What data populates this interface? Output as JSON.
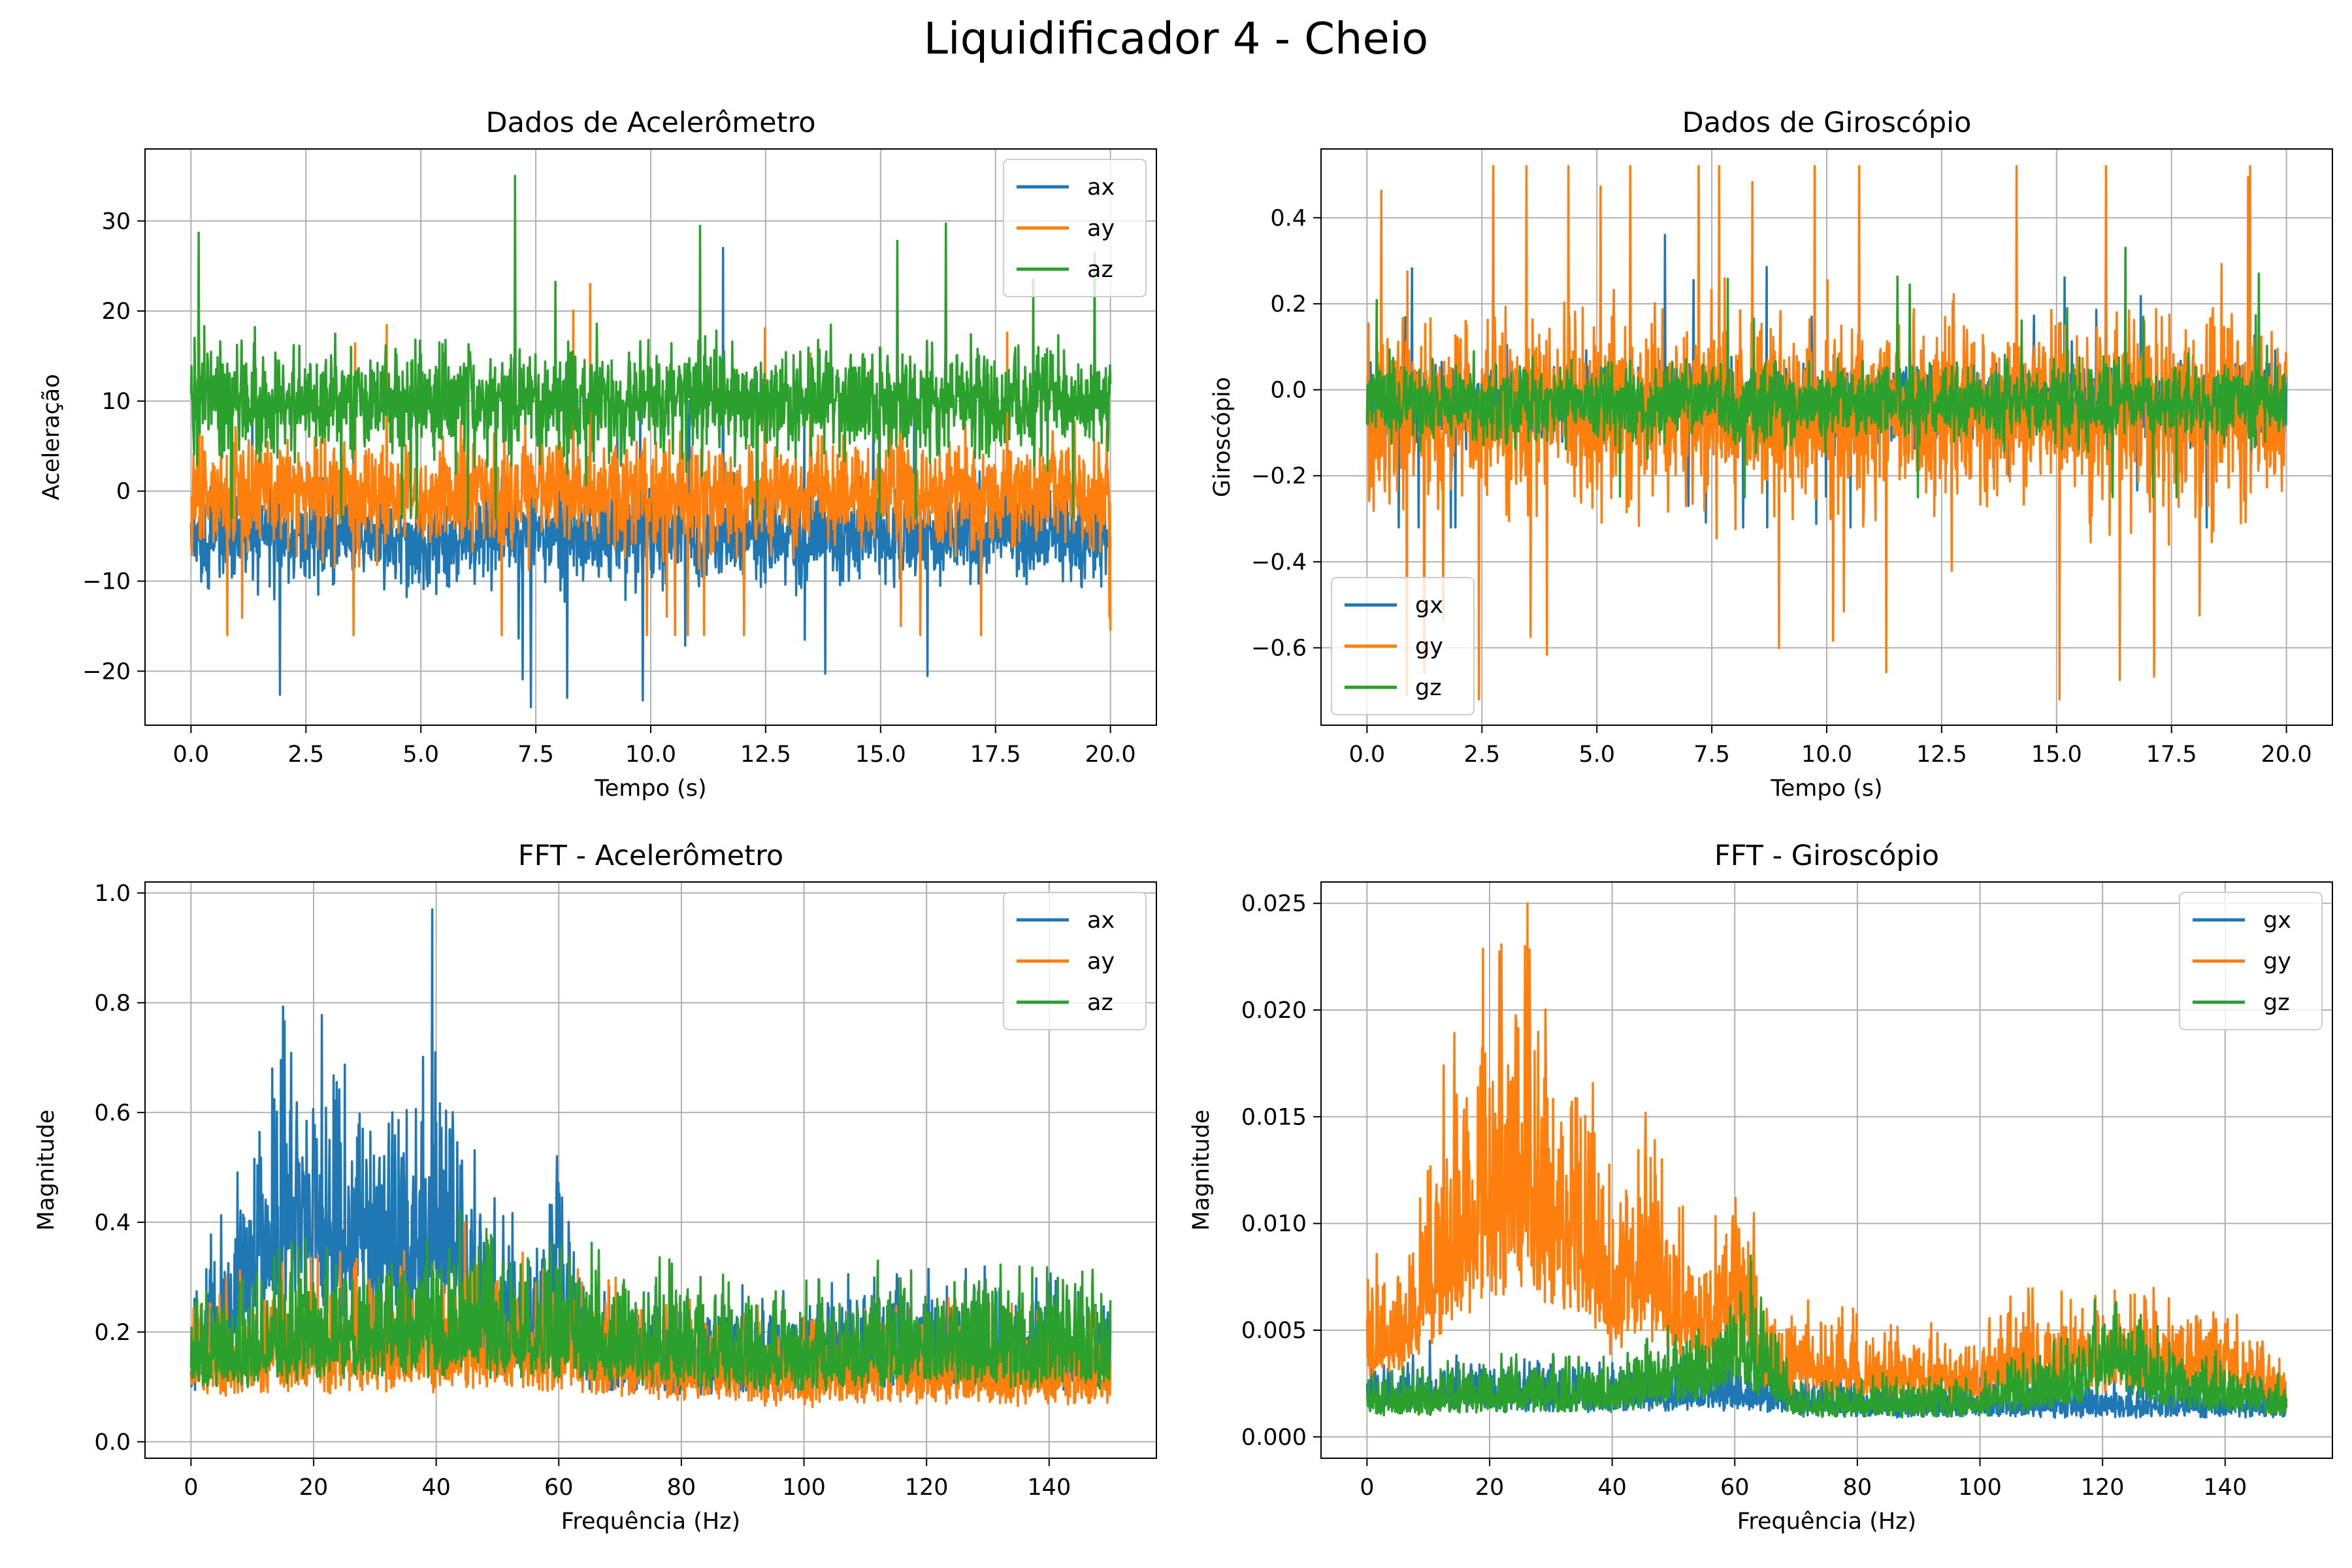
{
  "figure": {
    "suptitle": "Liquidificador 4 - Cheio"
  },
  "colors": {
    "blue": "#1f77b4",
    "orange": "#ff7f0e",
    "green": "#2ca02c",
    "grid": "#b0b0b0"
  },
  "chart_data": [
    {
      "id": "acc_time",
      "type": "line",
      "title": "Dados de Acelerômetro",
      "xlabel": "Tempo (s)",
      "ylabel": "Aceleração",
      "xlim": [
        -1.0,
        21.0
      ],
      "ylim": [
        -26.0,
        38.0
      ],
      "xticks": [
        0.0,
        2.5,
        5.0,
        7.5,
        10.0,
        12.5,
        15.0,
        17.5,
        20.0
      ],
      "xtick_labels": [
        "0.0",
        "2.5",
        "5.0",
        "7.5",
        "10.0",
        "12.5",
        "15.0",
        "17.5",
        "20.0"
      ],
      "yticks": [
        -20,
        -10,
        0,
        10,
        20,
        30
      ],
      "ytick_labels": [
        "−20",
        "−10",
        "0",
        "10",
        "20",
        "30"
      ],
      "grid": true,
      "legend": "top-right",
      "series_summary": [
        {
          "name": "ax",
          "color": "#1f77b4",
          "x_range": [
            0,
            20
          ],
          "center": -5.0,
          "typical_band": [
            -13,
            3
          ],
          "min": -24,
          "max": 27
        },
        {
          "name": "ay",
          "color": "#ff7f0e",
          "x_range": [
            0,
            20
          ],
          "center": 0.0,
          "typical_band": [
            -8,
            10
          ],
          "min": -16,
          "max": 23
        },
        {
          "name": "az",
          "color": "#2ca02c",
          "x_range": [
            0,
            20
          ],
          "center": 10.0,
          "typical_band": [
            2,
            20
          ],
          "min": -3,
          "max": 35
        }
      ]
    },
    {
      "id": "gyro_time",
      "type": "line",
      "title": "Dados de Giroscópio",
      "xlabel": "Tempo (s)",
      "ylabel": "Giroscópio",
      "xlim": [
        -1.0,
        21.0
      ],
      "ylim": [
        -0.78,
        0.56
      ],
      "xticks": [
        0.0,
        2.5,
        5.0,
        7.5,
        10.0,
        12.5,
        15.0,
        17.5,
        20.0
      ],
      "xtick_labels": [
        "0.0",
        "2.5",
        "5.0",
        "7.5",
        "10.0",
        "12.5",
        "15.0",
        "17.5",
        "20.0"
      ],
      "yticks": [
        -0.6,
        -0.4,
        -0.2,
        0.0,
        0.2,
        0.4
      ],
      "ytick_labels": [
        "−0.6",
        "−0.4",
        "−0.2",
        "0.0",
        "0.2",
        "0.4"
      ],
      "grid": true,
      "legend": "bottom-left",
      "series_summary": [
        {
          "name": "gx",
          "color": "#1f77b4",
          "x_range": [
            0,
            20
          ],
          "center": -0.03,
          "typical_band": [
            -0.16,
            0.12
          ],
          "min": -0.32,
          "max": 0.36
        },
        {
          "name": "gy",
          "color": "#ff7f0e",
          "x_range": [
            0,
            20
          ],
          "center": -0.05,
          "typical_band": [
            -0.38,
            0.28
          ],
          "min": -0.72,
          "max": 0.52
        },
        {
          "name": "gz",
          "color": "#2ca02c",
          "x_range": [
            0,
            20
          ],
          "center": -0.03,
          "typical_band": [
            -0.15,
            0.12
          ],
          "min": -0.25,
          "max": 0.33
        }
      ]
    },
    {
      "id": "acc_fft",
      "type": "line",
      "title": "FFT - Acelerômetro",
      "xlabel": "Frequência (Hz)",
      "ylabel": "Magnitude",
      "xlim": [
        -7.5,
        157.5
      ],
      "ylim": [
        -0.03,
        1.02
      ],
      "xticks": [
        0,
        20,
        40,
        60,
        80,
        100,
        120,
        140
      ],
      "xtick_labels": [
        "0",
        "20",
        "40",
        "60",
        "80",
        "100",
        "120",
        "140"
      ],
      "yticks": [
        0.0,
        0.2,
        0.4,
        0.6,
        0.8,
        1.0
      ],
      "ytick_labels": [
        "0.0",
        "0.2",
        "0.4",
        "0.6",
        "0.8",
        "1.0"
      ],
      "grid": true,
      "legend": "top-right",
      "series_summary": [
        {
          "name": "ax",
          "color": "#1f77b4",
          "x_range": [
            0,
            150
          ],
          "envelope_points": [
            [
              0,
              0.27
            ],
            [
              5,
              0.45
            ],
            [
              10,
              0.6
            ],
            [
              15,
              0.97
            ],
            [
              20,
              0.85
            ],
            [
              25,
              0.8
            ],
            [
              30,
              0.7
            ],
            [
              35,
              0.75
            ],
            [
              40,
              0.85
            ],
            [
              45,
              0.6
            ],
            [
              50,
              0.45
            ],
            [
              55,
              0.4
            ],
            [
              60,
              0.58
            ],
            [
              65,
              0.3
            ],
            [
              80,
              0.28
            ],
            [
              100,
              0.3
            ],
            [
              120,
              0.33
            ],
            [
              150,
              0.3
            ]
          ],
          "floor": 0.02,
          "max": 0.97
        },
        {
          "name": "ay",
          "color": "#ff7f0e",
          "x_range": [
            0,
            150
          ],
          "envelope_points": [
            [
              0,
              0.3
            ],
            [
              20,
              0.35
            ],
            [
              40,
              0.35
            ],
            [
              60,
              0.35
            ],
            [
              80,
              0.28
            ],
            [
              100,
              0.25
            ],
            [
              120,
              0.27
            ],
            [
              150,
              0.25
            ]
          ],
          "floor": 0.0,
          "max": 0.4
        },
        {
          "name": "az",
          "color": "#2ca02c",
          "x_range": [
            0,
            150
          ],
          "envelope_points": [
            [
              0,
              0.3
            ],
            [
              20,
              0.38
            ],
            [
              40,
              0.4
            ],
            [
              60,
              0.38
            ],
            [
              80,
              0.33
            ],
            [
              100,
              0.3
            ],
            [
              120,
              0.35
            ],
            [
              150,
              0.32
            ]
          ],
          "floor": 0.02,
          "max": 0.42
        }
      ]
    },
    {
      "id": "gyro_fft",
      "type": "line",
      "title": "FFT - Giroscópio",
      "xlabel": "Frequência (Hz)",
      "ylabel": "Magnitude",
      "xlim": [
        -7.5,
        157.5
      ],
      "ylim": [
        -0.001,
        0.026
      ],
      "xticks": [
        0,
        20,
        40,
        60,
        80,
        100,
        120,
        140
      ],
      "xtick_labels": [
        "0",
        "20",
        "40",
        "60",
        "80",
        "100",
        "120",
        "140"
      ],
      "yticks": [
        0.0,
        0.005,
        0.01,
        0.015,
        0.02,
        0.025
      ],
      "ytick_labels": [
        "0.000",
        "0.005",
        "0.010",
        "0.015",
        "0.020",
        "0.025"
      ],
      "grid": true,
      "legend": "top-right",
      "series_summary": [
        {
          "name": "gx",
          "color": "#1f77b4",
          "x_range": [
            0,
            150
          ],
          "envelope_points": [
            [
              0,
              0.004
            ],
            [
              20,
              0.004
            ],
            [
              40,
              0.004
            ],
            [
              60,
              0.004
            ],
            [
              80,
              0.003
            ],
            [
              100,
              0.003
            ],
            [
              120,
              0.003
            ],
            [
              150,
              0.003
            ]
          ],
          "floor": 0.0002,
          "max": 0.0045
        },
        {
          "name": "gy",
          "color": "#ff7f0e",
          "x_range": [
            0,
            150
          ],
          "envelope_points": [
            [
              0,
              0.008
            ],
            [
              5,
              0.01
            ],
            [
              10,
              0.015
            ],
            [
              15,
              0.02
            ],
            [
              20,
              0.024
            ],
            [
              25,
              0.025
            ],
            [
              30,
              0.021
            ],
            [
              35,
              0.02
            ],
            [
              40,
              0.013
            ],
            [
              45,
              0.016
            ],
            [
              50,
              0.012
            ],
            [
              55,
              0.01
            ],
            [
              60,
              0.013
            ],
            [
              62,
              0.014
            ],
            [
              65,
              0.007
            ],
            [
              80,
              0.006
            ],
            [
              100,
              0.005
            ],
            [
              105,
              0.007
            ],
            [
              120,
              0.007
            ],
            [
              140,
              0.007
            ],
            [
              150,
              0.004
            ]
          ],
          "floor": 0.0004,
          "max": 0.025
        },
        {
          "name": "gz",
          "color": "#2ca02c",
          "x_range": [
            0,
            150
          ],
          "envelope_points": [
            [
              0,
              0.003
            ],
            [
              20,
              0.004
            ],
            [
              40,
              0.004
            ],
            [
              55,
              0.006
            ],
            [
              60,
              0.009
            ],
            [
              64,
              0.007
            ],
            [
              70,
              0.003
            ],
            [
              100,
              0.003
            ],
            [
              115,
              0.005
            ],
            [
              122,
              0.008
            ],
            [
              130,
              0.005
            ],
            [
              150,
              0.003
            ]
          ],
          "floor": 0.0002,
          "max": 0.0085
        }
      ]
    }
  ]
}
